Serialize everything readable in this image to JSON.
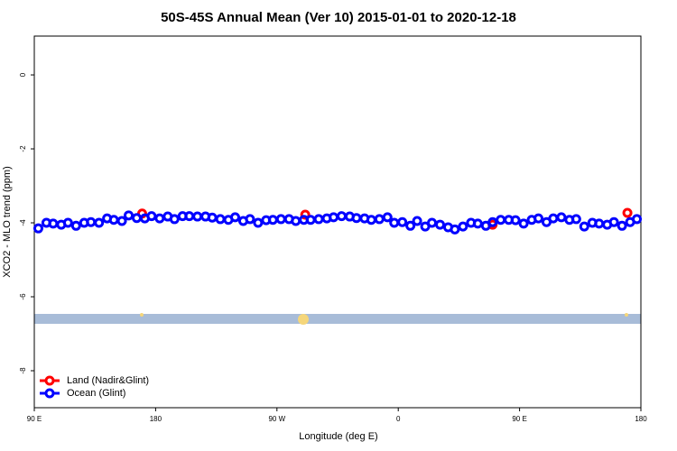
{
  "chart_data": {
    "type": "scatter",
    "title": "50S-45S Annual Mean (Ver 10)   2015-01-01 to 2020-12-18",
    "x_label": "Longitude (deg E)",
    "y_label": "XCO2 - MLO trend (ppm)",
    "xlim": [
      90,
      540
    ],
    "xticks": [
      {
        "value": 90,
        "label": "90 E"
      },
      {
        "value": 180,
        "label": "180"
      },
      {
        "value": 270,
        "label": "90 W"
      },
      {
        "value": 360,
        "label": "0"
      },
      {
        "value": 450,
        "label": "90 E"
      },
      {
        "value": 540,
        "label": "180"
      }
    ],
    "ylim": [
      -9,
      1.05
    ],
    "yticks": [
      0,
      -2,
      -4,
      -6,
      -8
    ],
    "legend": "bottom-left",
    "series": [
      {
        "name": "Land (Nadir&Glint)",
        "color": "#ff0000",
        "x": [
          170,
          291,
          430,
          530
        ],
        "values": [
          -3.75,
          -3.78,
          -4.05,
          -3.73
        ]
      },
      {
        "name": "Ocean (Glint)",
        "color": "#0000ff",
        "x": [
          93,
          99,
          104,
          110,
          115,
          121,
          127,
          132,
          138,
          144,
          149,
          155,
          160,
          166,
          172,
          177,
          183,
          189,
          194,
          200,
          205,
          211,
          217,
          222,
          228,
          234,
          239,
          245,
          250,
          256,
          262,
          267,
          273,
          279,
          284,
          290,
          295,
          301,
          307,
          312,
          318,
          324,
          329,
          335,
          340,
          346,
          352,
          357,
          363,
          369,
          374,
          380,
          385,
          391,
          397,
          402,
          408,
          414,
          419,
          425,
          430,
          436,
          442,
          447,
          453,
          459,
          464,
          470,
          475,
          481,
          487,
          492,
          498,
          504,
          509,
          515,
          520,
          526,
          532,
          537
        ],
        "values": [
          -4.15,
          -4.0,
          -4.02,
          -4.05,
          -4.0,
          -4.08,
          -4.0,
          -3.98,
          -4.0,
          -3.88,
          -3.92,
          -3.95,
          -3.8,
          -3.87,
          -3.88,
          -3.82,
          -3.88,
          -3.83,
          -3.9,
          -3.82,
          -3.82,
          -3.83,
          -3.83,
          -3.86,
          -3.9,
          -3.92,
          -3.85,
          -3.95,
          -3.9,
          -4.0,
          -3.93,
          -3.92,
          -3.9,
          -3.9,
          -3.95,
          -3.92,
          -3.92,
          -3.9,
          -3.88,
          -3.85,
          -3.82,
          -3.83,
          -3.87,
          -3.88,
          -3.92,
          -3.9,
          -3.85,
          -4.0,
          -3.98,
          -4.08,
          -3.95,
          -4.1,
          -4.0,
          -4.05,
          -4.12,
          -4.18,
          -4.1,
          -4.0,
          -4.02,
          -4.08,
          -3.98,
          -3.92,
          -3.92,
          -3.93,
          -4.02,
          -3.92,
          -3.88,
          -3.98,
          -3.88,
          -3.85,
          -3.92,
          -3.9,
          -4.1,
          -4.0,
          -4.02,
          -4.05,
          -3.98,
          -4.08,
          -3.98,
          -3.9
        ]
      }
    ]
  }
}
